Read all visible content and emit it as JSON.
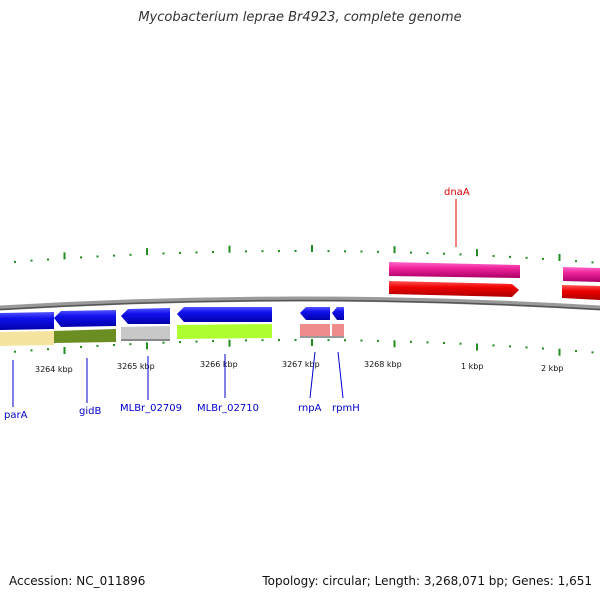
{
  "title": "Mycobacterium leprae Br4923, complete genome",
  "footer": {
    "accession": "Accession: NC_011896",
    "summary": "Topology: circular; Length: 3,268,071 bp; Genes: 1,651"
  },
  "ticks": [
    "3264 kbp",
    "3265 kbp",
    "3266 kbp",
    "3267 kbp",
    "3268 kbp",
    "1 kbp",
    "2 kbp"
  ],
  "genes": [
    {
      "name": "parA",
      "color": "#0000cc"
    },
    {
      "name": "gidB",
      "color": "#0000cc"
    },
    {
      "name": "MLBr_02709",
      "color": "#0000cc"
    },
    {
      "name": "MLBr_02710",
      "color": "#0000cc"
    },
    {
      "name": "rnpA",
      "color": "#0000cc"
    },
    {
      "name": "rpmH",
      "color": "#0000cc"
    },
    {
      "name": "dnaA",
      "color": "#dd0000"
    }
  ]
}
